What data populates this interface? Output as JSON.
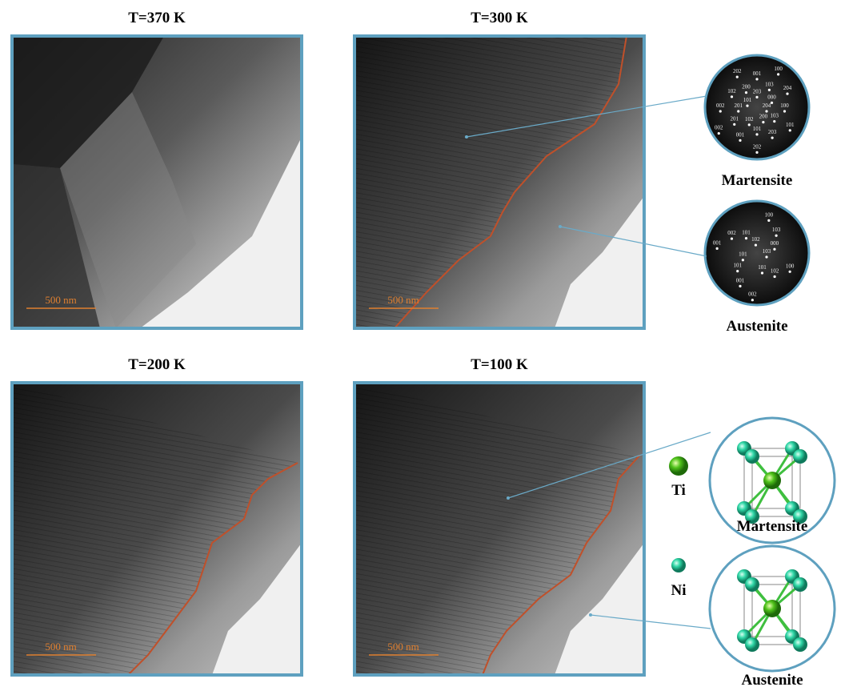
{
  "panels": [
    {
      "title": "T=370 K",
      "scale_bar": "500 nm"
    },
    {
      "title": "T=300 K",
      "scale_bar": "500 nm"
    },
    {
      "title": "T=200 K",
      "scale_bar": "500 nm"
    },
    {
      "title": "T=100 K",
      "scale_bar": "500 nm"
    }
  ],
  "diffraction": [
    {
      "label": "Martensite",
      "indices": [
        "204",
        "103",
        "203",
        "202",
        "102",
        "201",
        "002",
        "101",
        "200",
        "001",
        "100",
        "000",
        "100",
        "101",
        "200",
        "101",
        "001",
        "002",
        "201",
        "102",
        "202",
        "203",
        "103",
        "204"
      ]
    },
    {
      "label": "Austenite",
      "indices": [
        "103",
        "102",
        "002",
        "101",
        "001",
        "101",
        "100",
        "000",
        "100",
        "101",
        "001",
        "101",
        "002",
        "102",
        "103"
      ]
    }
  ],
  "crystal": {
    "atoms": [
      {
        "label": "Ti"
      },
      {
        "label": "Ni"
      }
    ],
    "structures": [
      {
        "label": "Martensite"
      },
      {
        "label": "Austenite"
      }
    ]
  }
}
